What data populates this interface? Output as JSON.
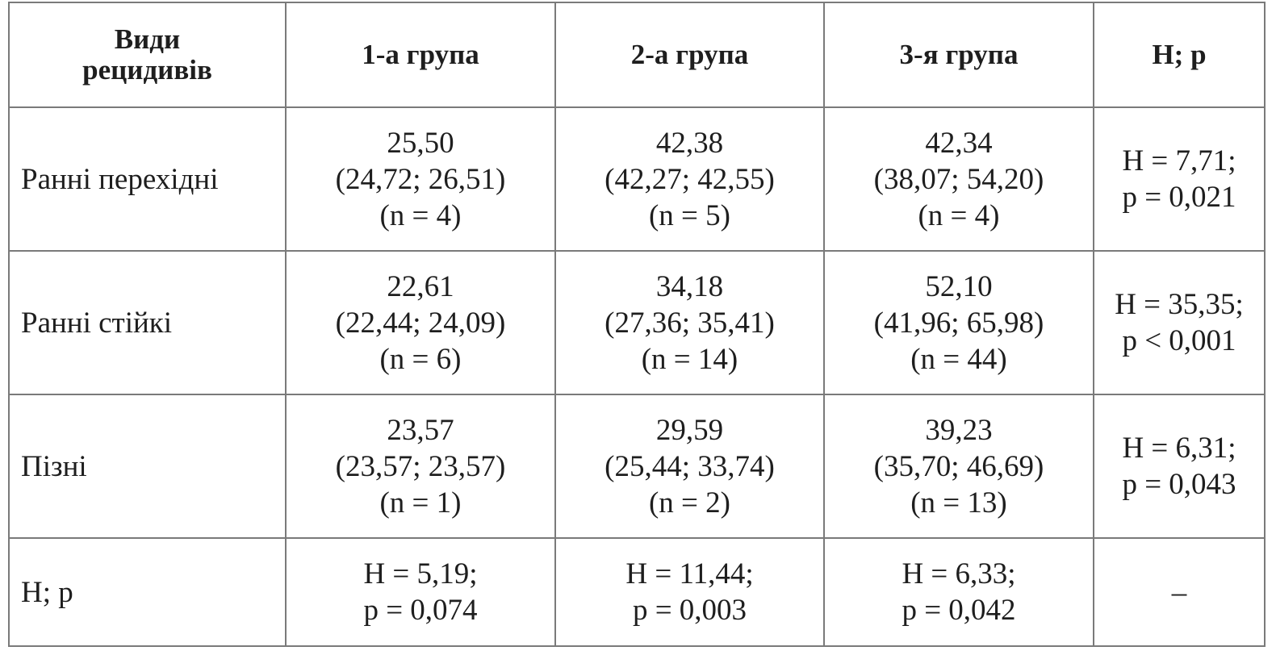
{
  "table": {
    "header": [
      [
        "Види",
        "рецидивів"
      ],
      [
        "1-а група"
      ],
      [
        "2-а група"
      ],
      [
        "3-я група"
      ],
      [
        "H; p"
      ]
    ],
    "rows": [
      [
        [
          "Ранні перехідні"
        ],
        [
          "25,50",
          "(24,72; 26,51)",
          "(n = 4)"
        ],
        [
          "42,38",
          "(42,27; 42,55)",
          "(n = 5)"
        ],
        [
          "42,34",
          "(38,07; 54,20)",
          "(n = 4)"
        ],
        [
          "H = 7,71;",
          "p = 0,021"
        ]
      ],
      [
        [
          "Ранні стійкі"
        ],
        [
          "22,61",
          "(22,44; 24,09)",
          "(n = 6)"
        ],
        [
          "34,18",
          "(27,36; 35,41)",
          "(n = 14)"
        ],
        [
          "52,10",
          "(41,96; 65,98)",
          "(n = 44)"
        ],
        [
          "H = 35,35;",
          "p < 0,001"
        ]
      ],
      [
        [
          "Пізні"
        ],
        [
          "23,57",
          "(23,57; 23,57)",
          "(n = 1)"
        ],
        [
          "29,59",
          "(25,44; 33,74)",
          "(n = 2)"
        ],
        [
          "39,23",
          "(35,70; 46,69)",
          "(n = 13)"
        ],
        [
          "H = 6,31;",
          "p = 0,043"
        ]
      ],
      [
        [
          "H; p"
        ],
        [
          "H = 5,19;",
          "p = 0,074"
        ],
        [
          "H = 11,44;",
          "p = 0,003"
        ],
        [
          "H = 6,33;",
          "p = 0,042"
        ],
        [
          "–"
        ]
      ]
    ]
  }
}
